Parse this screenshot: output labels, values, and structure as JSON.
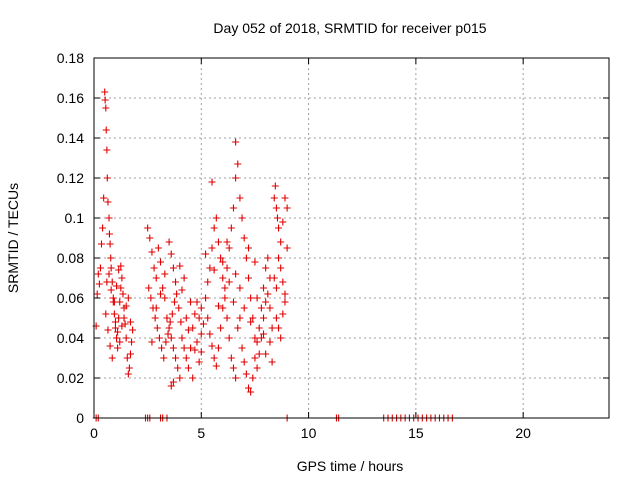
{
  "chart_data": {
    "type": "scatter",
    "title": "Day 052 of 2018, SRMTID for receiver p015",
    "xlabel": "GPS time / hours",
    "ylabel": "SRMTID / TECUs",
    "xlim": [
      0,
      24
    ],
    "ylim": [
      0,
      0.18
    ],
    "xticks": [
      0,
      5,
      10,
      15,
      20
    ],
    "xtick_labels": [
      "0",
      "5",
      "10",
      "15",
      "20"
    ],
    "yticks": [
      0,
      0.02,
      0.04,
      0.06,
      0.08,
      0.1,
      0.12,
      0.14,
      0.16,
      0.18
    ],
    "ytick_labels": [
      "0",
      "0.02",
      "0.04",
      "0.06",
      "0.08",
      "0.1",
      "0.12",
      "0.14",
      "0.16",
      "0.18"
    ],
    "grid": true,
    "marker": "+",
    "color": "#e00000",
    "series": [
      {
        "name": "SRMTID",
        "points": [
          [
            0.1,
            0.046
          ],
          [
            0.15,
            0.062
          ],
          [
            0.2,
            0.072
          ],
          [
            0.25,
            0.067
          ],
          [
            0.3,
            0.075
          ],
          [
            0.35,
            0.087
          ],
          [
            0.4,
            0.095
          ],
          [
            0.45,
            0.11
          ],
          [
            0.5,
            0.163
          ],
          [
            0.52,
            0.159
          ],
          [
            0.55,
            0.155
          ],
          [
            0.57,
            0.144
          ],
          [
            0.6,
            0.134
          ],
          [
            0.62,
            0.12
          ],
          [
            0.65,
            0.108
          ],
          [
            0.7,
            0.1
          ],
          [
            0.72,
            0.092
          ],
          [
            0.75,
            0.087
          ],
          [
            0.78,
            0.08
          ],
          [
            0.8,
            0.075
          ],
          [
            0.85,
            0.068
          ],
          [
            0.9,
            0.06
          ],
          [
            0.95,
            0.052
          ],
          [
            1.0,
            0.045
          ],
          [
            1.05,
            0.04
          ],
          [
            1.1,
            0.035
          ],
          [
            1.15,
            0.05
          ],
          [
            1.2,
            0.058
          ],
          [
            1.25,
            0.065
          ],
          [
            1.3,
            0.07
          ],
          [
            1.35,
            0.062
          ],
          [
            1.4,
            0.055
          ],
          [
            1.45,
            0.047
          ],
          [
            1.5,
            0.04
          ],
          [
            1.55,
            0.03
          ],
          [
            1.6,
            0.022
          ],
          [
            1.65,
            0.025
          ],
          [
            1.7,
            0.032
          ],
          [
            1.75,
            0.038
          ],
          [
            1.8,
            0.044
          ],
          [
            0.6,
            0.068
          ],
          [
            0.7,
            0.072
          ],
          [
            0.8,
            0.064
          ],
          [
            0.9,
            0.058
          ],
          [
            1.0,
            0.048
          ],
          [
            1.1,
            0.043
          ],
          [
            1.2,
            0.038
          ],
          [
            1.3,
            0.046
          ],
          [
            1.4,
            0.05
          ],
          [
            1.5,
            0.056
          ],
          [
            1.6,
            0.06
          ],
          [
            1.7,
            0.048
          ],
          [
            0.55,
            0.052
          ],
          [
            0.65,
            0.044
          ],
          [
            0.75,
            0.036
          ],
          [
            0.85,
            0.03
          ],
          [
            0.95,
            0.058
          ],
          [
            1.05,
            0.066
          ],
          [
            1.15,
            0.074
          ],
          [
            1.25,
            0.076
          ],
          [
            2.5,
            0.095
          ],
          [
            2.6,
            0.09
          ],
          [
            2.7,
            0.083
          ],
          [
            2.8,
            0.075
          ],
          [
            2.9,
            0.07
          ],
          [
            3.0,
            0.085
          ],
          [
            3.1,
            0.078
          ],
          [
            3.2,
            0.065
          ],
          [
            3.3,
            0.06
          ],
          [
            3.4,
            0.05
          ],
          [
            3.5,
            0.045
          ],
          [
            3.6,
            0.04
          ],
          [
            3.7,
            0.035
          ],
          [
            3.8,
            0.03
          ],
          [
            3.9,
            0.025
          ],
          [
            4.0,
            0.02
          ],
          [
            2.55,
            0.065
          ],
          [
            2.65,
            0.06
          ],
          [
            2.75,
            0.055
          ],
          [
            2.85,
            0.05
          ],
          [
            2.95,
            0.045
          ],
          [
            3.05,
            0.04
          ],
          [
            3.15,
            0.035
          ],
          [
            3.25,
            0.03
          ],
          [
            3.35,
            0.038
          ],
          [
            3.45,
            0.042
          ],
          [
            3.55,
            0.048
          ],
          [
            3.65,
            0.052
          ],
          [
            3.75,
            0.058
          ],
          [
            3.85,
            0.062
          ],
          [
            3.95,
            0.055
          ],
          [
            4.05,
            0.048
          ],
          [
            4.1,
            0.04
          ],
          [
            4.2,
            0.035
          ],
          [
            4.3,
            0.03
          ],
          [
            4.4,
            0.025
          ],
          [
            4.5,
            0.035
          ],
          [
            4.6,
            0.045
          ],
          [
            4.7,
            0.052
          ],
          [
            4.8,
            0.058
          ],
          [
            4.9,
            0.05
          ],
          [
            5.0,
            0.042
          ],
          [
            3.5,
            0.088
          ],
          [
            3.6,
            0.082
          ],
          [
            3.7,
            0.075
          ],
          [
            3.8,
            0.068
          ],
          [
            4.0,
            0.076
          ],
          [
            4.2,
            0.07
          ],
          [
            3.6,
            0.016
          ],
          [
            3.7,
            0.018
          ],
          [
            4.3,
            0.05
          ],
          [
            4.5,
            0.058
          ],
          [
            4.7,
            0.034
          ],
          [
            4.9,
            0.028
          ],
          [
            2.7,
            0.038
          ],
          [
            2.9,
            0.055
          ],
          [
            3.1,
            0.062
          ],
          [
            3.3,
            0.072
          ],
          [
            4.1,
            0.064
          ],
          [
            4.4,
            0.044
          ],
          [
            4.6,
            0.02
          ],
          [
            4.8,
            0.038
          ],
          [
            5.0,
            0.055
          ],
          [
            5.1,
            0.047
          ],
          [
            5.2,
            0.06
          ],
          [
            5.3,
            0.068
          ],
          [
            5.4,
            0.075
          ],
          [
            5.5,
            0.085
          ],
          [
            5.6,
            0.095
          ],
          [
            5.7,
            0.1
          ],
          [
            5.5,
            0.118
          ],
          [
            5.8,
            0.088
          ],
          [
            5.9,
            0.08
          ],
          [
            6.0,
            0.07
          ],
          [
            6.1,
            0.06
          ],
          [
            6.2,
            0.05
          ],
          [
            6.3,
            0.04
          ],
          [
            6.4,
            0.03
          ],
          [
            6.5,
            0.025
          ],
          [
            6.6,
            0.02
          ],
          [
            5.3,
            0.05
          ],
          [
            5.4,
            0.042
          ],
          [
            5.5,
            0.036
          ],
          [
            5.6,
            0.03
          ],
          [
            5.7,
            0.026
          ],
          [
            5.8,
            0.035
          ],
          [
            5.9,
            0.045
          ],
          [
            6.0,
            0.055
          ],
          [
            6.1,
            0.065
          ],
          [
            6.2,
            0.075
          ],
          [
            6.3,
            0.085
          ],
          [
            6.4,
            0.095
          ],
          [
            6.5,
            0.105
          ],
          [
            6.6,
            0.12
          ],
          [
            6.7,
            0.127
          ],
          [
            6.6,
            0.138
          ],
          [
            6.8,
            0.11
          ],
          [
            6.9,
            0.1
          ],
          [
            7.0,
            0.09
          ],
          [
            7.1,
            0.08
          ],
          [
            7.2,
            0.07
          ],
          [
            7.3,
            0.06
          ],
          [
            7.4,
            0.05
          ],
          [
            7.5,
            0.04
          ],
          [
            6.7,
            0.045
          ],
          [
            6.8,
            0.05
          ],
          [
            6.9,
            0.035
          ],
          [
            7.0,
            0.028
          ],
          [
            7.1,
            0.022
          ],
          [
            7.2,
            0.015
          ],
          [
            7.3,
            0.013
          ],
          [
            7.4,
            0.02
          ],
          [
            7.5,
            0.03
          ],
          [
            7.6,
            0.038
          ],
          [
            7.7,
            0.045
          ],
          [
            7.8,
            0.055
          ],
          [
            7.9,
            0.065
          ],
          [
            8.0,
            0.075
          ],
          [
            8.1,
            0.08
          ],
          [
            8.2,
            0.07
          ],
          [
            7.6,
            0.025
          ],
          [
            7.7,
            0.032
          ],
          [
            7.8,
            0.04
          ],
          [
            7.9,
            0.05
          ],
          [
            8.0,
            0.058
          ],
          [
            8.1,
            0.062
          ],
          [
            8.2,
            0.055
          ],
          [
            8.3,
            0.045
          ],
          [
            8.4,
            0.11
          ],
          [
            8.45,
            0.116
          ],
          [
            8.5,
            0.105
          ],
          [
            8.55,
            0.1
          ],
          [
            8.6,
            0.095
          ],
          [
            8.7,
            0.088
          ],
          [
            8.8,
            0.098
          ],
          [
            8.9,
            0.11
          ],
          [
            9.0,
            0.105
          ],
          [
            8.6,
            0.08
          ],
          [
            8.7,
            0.075
          ],
          [
            8.8,
            0.068
          ],
          [
            8.9,
            0.062
          ],
          [
            9.0,
            0.085
          ],
          [
            8.5,
            0.05
          ],
          [
            8.6,
            0.045
          ],
          [
            8.7,
            0.04
          ],
          [
            8.8,
            0.052
          ],
          [
            8.9,
            0.058
          ],
          [
            8.4,
            0.07
          ],
          [
            8.5,
            0.065
          ],
          [
            6.0,
            0.078
          ],
          [
            6.3,
            0.068
          ],
          [
            6.5,
            0.058
          ],
          [
            6.8,
            0.065
          ],
          [
            7.0,
            0.055
          ],
          [
            7.3,
            0.048
          ],
          [
            7.6,
            0.06
          ],
          [
            7.9,
            0.042
          ],
          [
            8.2,
            0.038
          ],
          [
            5.2,
            0.082
          ],
          [
            5.6,
            0.074
          ],
          [
            6.2,
            0.088
          ],
          [
            6.6,
            0.072
          ],
          [
            7.2,
            0.085
          ],
          [
            7.5,
            0.078
          ],
          [
            8.0,
            0.032
          ],
          [
            8.3,
            0.028
          ],
          [
            5.0,
            0.033
          ],
          [
            5.8,
            0.056
          ],
          [
            0.1,
            0
          ],
          [
            0.2,
            0
          ],
          [
            2.4,
            0
          ],
          [
            2.5,
            0
          ],
          [
            2.6,
            0
          ],
          [
            3.1,
            0
          ],
          [
            3.2,
            0
          ],
          [
            3.4,
            0
          ],
          [
            9.0,
            0
          ],
          [
            11.3,
            0
          ],
          [
            11.4,
            0
          ],
          [
            13.5,
            0
          ],
          [
            13.7,
            0
          ],
          [
            13.9,
            0
          ],
          [
            14.1,
            0
          ],
          [
            14.3,
            0
          ],
          [
            14.5,
            0
          ],
          [
            14.7,
            0
          ],
          [
            14.9,
            0
          ],
          [
            15.1,
            0
          ],
          [
            15.3,
            0
          ],
          [
            15.5,
            0
          ],
          [
            15.7,
            0
          ],
          [
            15.9,
            0
          ],
          [
            16.1,
            0
          ],
          [
            16.3,
            0
          ],
          [
            16.5,
            0
          ],
          [
            16.7,
            0
          ]
        ]
      }
    ]
  }
}
